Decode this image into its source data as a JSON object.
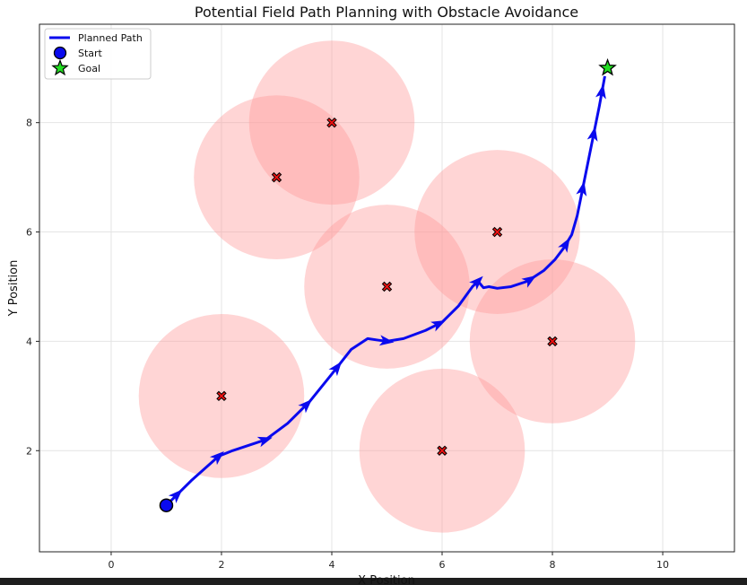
{
  "chart_data": {
    "type": "scatter",
    "title": "Potential Field Path Planning with Obstacle Avoidance",
    "xlabel": "X Position",
    "ylabel": "Y Position",
    "xlim": [
      -1.3,
      11.3
    ],
    "ylim": [
      0.15,
      9.8
    ],
    "xticks": [
      0,
      2,
      4,
      6,
      8,
      10
    ],
    "yticks": [
      2,
      4,
      6,
      8
    ],
    "grid": true,
    "legend_placement": "top-left",
    "legend": [
      {
        "label": "Planned Path",
        "kind": "line",
        "color": "#0a0aee"
      },
      {
        "label": "Start",
        "kind": "circle",
        "color": "#0a0aee"
      },
      {
        "label": "Goal",
        "kind": "star",
        "color": "#22dd22"
      }
    ],
    "obstacles": [
      {
        "x": 2,
        "y": 3,
        "influence_radius": 1.5
      },
      {
        "x": 3,
        "y": 7,
        "influence_radius": 1.5
      },
      {
        "x": 4,
        "y": 8,
        "influence_radius": 1.5
      },
      {
        "x": 5,
        "y": 5,
        "influence_radius": 1.5
      },
      {
        "x": 6,
        "y": 2,
        "influence_radius": 1.5
      },
      {
        "x": 7,
        "y": 6,
        "influence_radius": 1.5
      },
      {
        "x": 8,
        "y": 4,
        "influence_radius": 1.5
      }
    ],
    "start": {
      "x": 1.0,
      "y": 1.0
    },
    "goal": {
      "x": 9.0,
      "y": 9.0
    },
    "path": {
      "name": "Planned Path",
      "x": [
        1.0,
        1.45,
        1.95,
        2.2,
        2.8,
        3.2,
        3.6,
        4.0,
        4.35,
        4.65,
        4.85,
        5.0,
        5.3,
        5.7,
        6.0,
        6.3,
        6.55,
        6.65,
        6.75,
        6.85,
        7.0,
        7.25,
        7.55,
        7.85,
        8.05,
        8.2,
        8.35,
        8.45,
        8.55,
        8.65,
        8.75,
        8.85,
        8.95
      ],
      "y": [
        1.0,
        1.45,
        1.9,
        2.0,
        2.2,
        2.5,
        2.9,
        3.4,
        3.85,
        4.05,
        4.02,
        4.0,
        4.05,
        4.2,
        4.35,
        4.65,
        5.0,
        5.1,
        4.98,
        5.0,
        4.97,
        5.0,
        5.1,
        5.3,
        5.5,
        5.7,
        5.95,
        6.3,
        6.8,
        7.3,
        7.8,
        8.3,
        8.85
      ],
      "arrows_at": [
        1.2,
        1.95,
        2.8,
        3.55,
        4.1,
        5.0,
        5.95,
        6.65,
        7.6,
        8.25,
        8.55,
        8.75,
        8.9
      ]
    },
    "colors": {
      "path": "#0a0aee",
      "obstacle_zone": "#ff9a9a",
      "obstacle_marker": "#ee1111",
      "goal_marker": "#22dd22",
      "start_marker": "#0a0aee"
    }
  }
}
